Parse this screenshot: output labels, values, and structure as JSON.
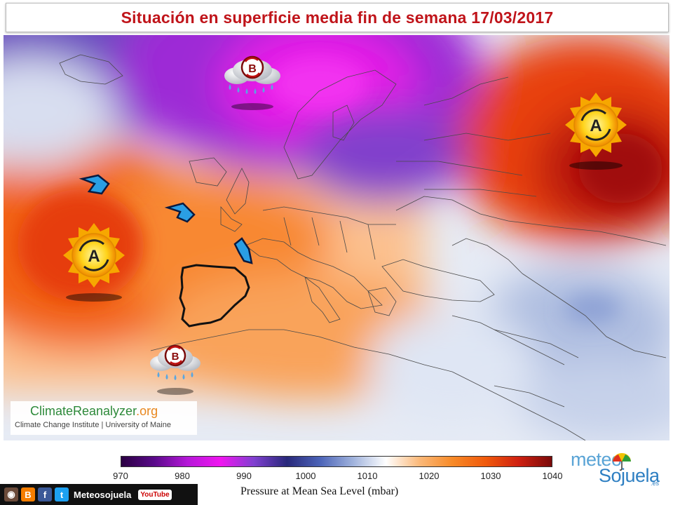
{
  "title": "Situación en superficie media fin de semana 17/03/2017",
  "map": {
    "highs": [
      {
        "letter": "A",
        "icon": "high-pressure-sun-icon",
        "location": "Atlantic, west of Iberia"
      },
      {
        "letter": "A",
        "icon": "high-pressure-sun-icon",
        "location": "Western Russia"
      }
    ],
    "lows": [
      {
        "letter": "B",
        "icon": "low-pressure-rain-cloud-icon",
        "location": "South of Iceland"
      },
      {
        "letter": "B",
        "icon": "low-pressure-rain-cloud-icon",
        "location": "Canary Islands / Morocco"
      }
    ],
    "wind_arrows": 3,
    "highlighted_region": "Iberian Peninsula"
  },
  "credit": {
    "brand_main": "ClimateReanalyzer",
    "brand_tld": ".org",
    "subtitle": "Climate Change Institute | University of Maine"
  },
  "scale": {
    "caption": "Pressure at Mean Sea Level (mbar)",
    "ticks": [
      "970",
      "980",
      "990",
      "1000",
      "1010",
      "1020",
      "1030",
      "1040"
    ],
    "min": 970,
    "max": 1040,
    "colors": [
      "#2a0042",
      "#5a0a8a",
      "#b517d8",
      "#f015f0",
      "#8040d0",
      "#28287a",
      "#4c64b8",
      "#9fb2dc",
      "#ffffff",
      "#fbb97a",
      "#f78a28",
      "#f05a0c",
      "#cf2010",
      "#7a0a0a"
    ]
  },
  "social": {
    "name": "Meteosojuela",
    "youtube": "YouTube",
    "icons": [
      "instagram-icon",
      "blogger-icon",
      "facebook-icon",
      "twitter-icon"
    ]
  },
  "brand": {
    "line1": "meteo",
    "line2": "Sojuela",
    "suffix": ".es"
  }
}
